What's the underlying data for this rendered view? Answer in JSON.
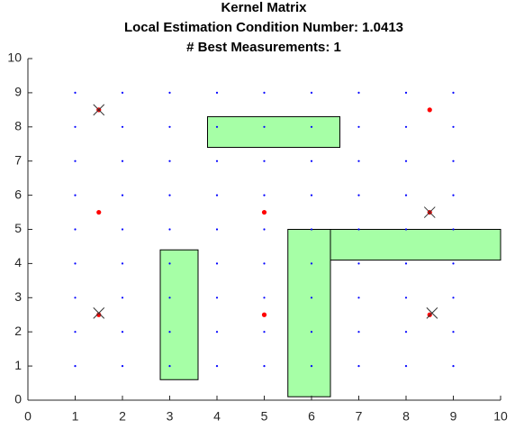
{
  "chart_data": {
    "type": "scatter",
    "title": [
      "Kernel Matrix",
      "Local Estimation Condition Number: 1.0413",
      "# Best Measurements: 1"
    ],
    "xlim": [
      0,
      10
    ],
    "ylim": [
      0,
      10
    ],
    "xticks": [
      0,
      1,
      2,
      3,
      4,
      5,
      6,
      7,
      8,
      9,
      10
    ],
    "yticks": [
      0,
      1,
      2,
      3,
      4,
      5,
      6,
      7,
      8,
      9,
      10
    ],
    "grid_points": {
      "color": "#0000ff",
      "x": [
        1,
        2,
        3,
        4,
        5,
        6,
        7,
        8,
        9
      ],
      "y": [
        1,
        2,
        3,
        4,
        5,
        6,
        7,
        8,
        9
      ]
    },
    "points": {
      "color": "#ff0000",
      "x": [
        1.5,
        1.5,
        1.5,
        5,
        5,
        8.5,
        8.5,
        8.5
      ],
      "y": [
        8.5,
        5.5,
        2.5,
        5.5,
        2.5,
        8.5,
        5.5,
        2.5
      ]
    },
    "markers": {
      "color": "#333333",
      "x": [
        1.5,
        1.5,
        8.5,
        8.55
      ],
      "y": [
        8.5,
        2.55,
        5.5,
        2.55
      ]
    },
    "rects": {
      "color": "#a6ffa6",
      "items": [
        {
          "x": [
            3.8,
            6.6
          ],
          "y": [
            7.4,
            8.3
          ]
        },
        {
          "x": [
            2.8,
            3.6
          ],
          "y": [
            0.6,
            4.4
          ]
        },
        {
          "x": [
            5.5,
            6.4
          ],
          "y": [
            0.1,
            5.0
          ]
        },
        {
          "x": [
            6.4,
            10.0
          ],
          "y": [
            4.1,
            5.0
          ]
        }
      ]
    }
  }
}
